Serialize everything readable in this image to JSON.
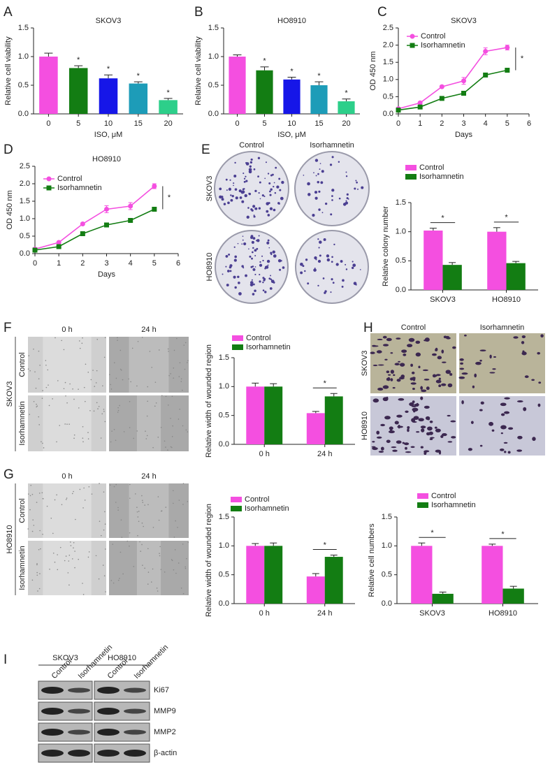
{
  "chart_data": [
    {
      "type": "bar",
      "panel": "A",
      "title": "SKOV3",
      "ylabel": "Relative cell viability",
      "xlabel": "ISO, μM",
      "categories": [
        "0",
        "5",
        "10",
        "15",
        "20"
      ],
      "values": [
        1.0,
        0.8,
        0.62,
        0.53,
        0.24
      ],
      "errors": [
        0.06,
        0.04,
        0.06,
        0.03,
        0.03
      ],
      "colors": [
        "#f44fe0",
        "#137d13",
        "#1616e8",
        "#1d9cb8",
        "#2dcf8a"
      ],
      "significance": [
        null,
        "*",
        "*",
        "*",
        "*"
      ],
      "ylim": [
        0,
        1.5
      ],
      "yticks": [
        {
          "value": 0,
          "label": "0.0"
        },
        0.5,
        {
          "value": 1,
          "label": "1.0"
        },
        1.5
      ]
    },
    {
      "type": "bar",
      "panel": "B",
      "title": "HO8910",
      "ylabel": "Relative cell viability",
      "xlabel": "ISO, μM",
      "categories": [
        "0",
        "5",
        "10",
        "15",
        "20"
      ],
      "values": [
        1.0,
        0.76,
        0.6,
        0.5,
        0.22
      ],
      "errors": [
        0.03,
        0.06,
        0.04,
        0.06,
        0.04
      ],
      "colors": [
        "#f44fe0",
        "#137d13",
        "#1616e8",
        "#1d9cb8",
        "#2dcf8a"
      ],
      "significance": [
        null,
        "*",
        "*",
        "*",
        "*"
      ],
      "ylim": [
        0,
        1.5
      ],
      "yticks": [
        {
          "value": 0,
          "label": "0.0"
        },
        0.5,
        {
          "value": 1,
          "label": "1.0"
        },
        1.5
      ]
    },
    {
      "type": "line",
      "panel": "C",
      "title": "SKOV3",
      "ylabel": "OD 450 nm",
      "xlabel": "Days",
      "annotation": "*",
      "x": [
        0,
        1,
        2,
        3,
        4,
        5
      ],
      "xlim": [
        0,
        6
      ],
      "xticks": [
        0,
        1,
        2,
        3,
        4,
        5,
        6
      ],
      "series": [
        {
          "name": "Control",
          "color": "#f44fe0",
          "marker": "circle",
          "values": [
            0.15,
            0.32,
            0.79,
            0.96,
            1.82,
            1.93
          ],
          "errors": [
            0.02,
            0.03,
            0.03,
            0.1,
            0.1,
            0.07
          ]
        },
        {
          "name": "Isorhamnetin",
          "color": "#137d13",
          "marker": "square",
          "values": [
            0.11,
            0.2,
            0.45,
            0.6,
            1.13,
            1.27
          ],
          "errors": [
            0.02,
            0.02,
            0.03,
            0.04,
            0.05,
            0.03
          ]
        }
      ],
      "ylim": [
        0,
        2.5
      ],
      "yticks": [
        {
          "value": 0,
          "label": "0.0"
        },
        0.5,
        {
          "value": 1,
          "label": "1.0"
        },
        1.5,
        {
          "value": 2,
          "label": "2.0"
        },
        2.5
      ]
    },
    {
      "type": "line",
      "panel": "D",
      "title": "HO8910",
      "ylabel": "OD 450 nm",
      "xlabel": "Days",
      "annotation": "*",
      "x": [
        0,
        1,
        2,
        3,
        4,
        5
      ],
      "xlim": [
        0,
        6
      ],
      "xticks": [
        0,
        1,
        2,
        3,
        4,
        5,
        6
      ],
      "series": [
        {
          "name": "Control",
          "color": "#f44fe0",
          "marker": "circle",
          "values": [
            0.13,
            0.32,
            0.85,
            1.27,
            1.36,
            1.93
          ],
          "errors": [
            0.02,
            0.03,
            0.03,
            0.1,
            0.1,
            0.07
          ]
        },
        {
          "name": "Isorhamnetin",
          "color": "#137d13",
          "marker": "square",
          "values": [
            0.1,
            0.2,
            0.57,
            0.82,
            0.95,
            1.27
          ],
          "errors": [
            0.02,
            0.02,
            0.03,
            0.04,
            0.05,
            0.03
          ]
        }
      ],
      "ylim": [
        0,
        2.5
      ],
      "yticks": [
        {
          "value": 0,
          "label": "0.0"
        },
        0.5,
        {
          "value": 1,
          "label": "1.0"
        },
        1.5,
        {
          "value": 2,
          "label": "2.0"
        },
        2.5
      ]
    },
    {
      "type": "bar",
      "ylabel": "Relative colony number",
      "categories": [
        "SKOV3",
        "HO8910"
      ],
      "significance": [
        "*",
        "*"
      ],
      "series": [
        {
          "name": "Control",
          "color": "#f44fe0",
          "values": [
            1.02,
            1.0
          ],
          "errors": [
            0.04,
            0.07
          ]
        },
        {
          "name": "Isorhamnetin",
          "color": "#137d13",
          "values": [
            0.43,
            0.46
          ],
          "errors": [
            0.04,
            0.03
          ]
        }
      ],
      "ylim": [
        0,
        1.5
      ],
      "yticks": [
        {
          "value": 0,
          "label": "0.0"
        },
        0.5,
        {
          "value": 1,
          "label": "1.0"
        },
        1.5
      ]
    },
    {
      "type": "bar",
      "ylabel": "Relative width of wounded region",
      "categories": [
        "0 h",
        "24 h"
      ],
      "significance": [
        null,
        "*"
      ],
      "series": [
        {
          "name": "Control",
          "color": "#f44fe0",
          "values": [
            1.0,
            0.54
          ],
          "errors": [
            0.06,
            0.03
          ]
        },
        {
          "name": "Isorhamnetin",
          "color": "#137d13",
          "values": [
            1.0,
            0.83
          ],
          "errors": [
            0.05,
            0.05
          ]
        }
      ],
      "ylim": [
        0,
        1.5
      ],
      "yticks": [
        {
          "value": 0,
          "label": "0.0"
        },
        0.5,
        {
          "value": 1,
          "label": "1.0"
        },
        1.5
      ]
    },
    {
      "type": "bar",
      "ylabel": "Relative width of wounded region",
      "categories": [
        "0 h",
        "24 h"
      ],
      "significance": [
        null,
        "*"
      ],
      "series": [
        {
          "name": "Control",
          "color": "#f44fe0",
          "values": [
            1.0,
            0.47
          ],
          "errors": [
            0.04,
            0.05
          ]
        },
        {
          "name": "Isorhamnetin",
          "color": "#137d13",
          "values": [
            1.0,
            0.81
          ],
          "errors": [
            0.05,
            0.03
          ]
        }
      ],
      "ylim": [
        0,
        1.5
      ],
      "yticks": [
        {
          "value": 0,
          "label": "0.0"
        },
        0.5,
        {
          "value": 1,
          "label": "1.0"
        },
        1.5
      ]
    },
    {
      "type": "bar",
      "ylabel": "Relative cell numbers",
      "categories": [
        "SKOV3",
        "HO8910"
      ],
      "significance": [
        "*",
        "*"
      ],
      "series": [
        {
          "name": "Control",
          "color": "#f44fe0",
          "values": [
            1.0,
            1.0
          ],
          "errors": [
            0.05,
            0.03
          ]
        },
        {
          "name": "Isorhamnetin",
          "color": "#137d13",
          "values": [
            0.17,
            0.26
          ],
          "errors": [
            0.03,
            0.04
          ]
        }
      ],
      "ylim": [
        0,
        1.5
      ],
      "yticks": [
        {
          "value": 0,
          "label": "0.0"
        },
        0.5,
        {
          "value": 1,
          "label": "1.0"
        },
        1.5
      ]
    }
  ],
  "images": [
    {
      "panel": "E",
      "columns": [
        "Control",
        "Isorhamnetin"
      ],
      "rows": [
        "SKOV3",
        "HO8910"
      ]
    },
    {
      "panel": "F",
      "columns": [
        "0 h",
        "24 h"
      ],
      "rows": [
        "Control",
        "Isorhamnetin"
      ],
      "group": "SKOV3"
    },
    {
      "panel": "G",
      "columns": [
        "0 h",
        "24 h"
      ],
      "rows": [
        "Control",
        "Isorhamnetin"
      ],
      "group": "HO8910"
    },
    {
      "panel": "H",
      "columns": [
        "Control",
        "Isorhamnetin"
      ],
      "rows": [
        "SKOV3",
        "HO8910"
      ]
    }
  ],
  "blot": {
    "panel": "I",
    "groups": [
      "SKOV3",
      "HO8910"
    ],
    "lanes": [
      "Control",
      "Isorhamnetin",
      "Control",
      "Isorhamnetin"
    ],
    "proteins": [
      "Ki67",
      "MMP9",
      "MMP2",
      "β-actin"
    ]
  }
}
